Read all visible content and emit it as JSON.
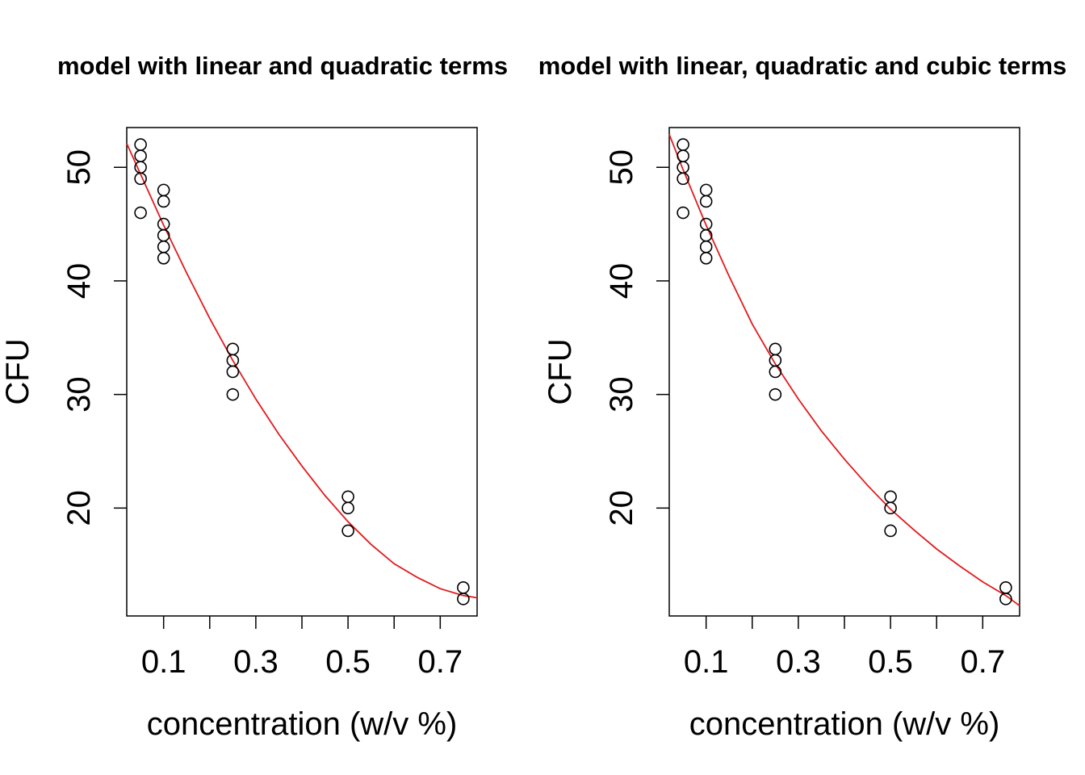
{
  "chart_data": [
    {
      "type": "scatter",
      "title": "model with linear and quadratic terms",
      "xlabel": "concentration (w/v %)",
      "ylabel": "CFU",
      "xlim": [
        0.02,
        0.78
      ],
      "ylim": [
        10.5,
        53.5
      ],
      "xticks": [
        0.1,
        0.2,
        0.3,
        0.4,
        0.5,
        0.6,
        0.7
      ],
      "xtick_labels": [
        "0.1",
        "",
        "0.3",
        "",
        "0.5",
        "",
        "0.7"
      ],
      "yticks": [
        20,
        30,
        40,
        50
      ],
      "ytick_labels": [
        "20",
        "30",
        "40",
        "50"
      ],
      "grid": false,
      "series": [
        {
          "kind": "points",
          "marker": "open-circle",
          "color": "#000000",
          "x": [
            0.05,
            0.05,
            0.05,
            0.05,
            0.05,
            0.1,
            0.1,
            0.1,
            0.1,
            0.1,
            0.1,
            0.25,
            0.25,
            0.25,
            0.25,
            0.5,
            0.5,
            0.5,
            0.75,
            0.75
          ],
          "y": [
            52,
            51,
            50,
            49,
            46,
            48,
            47,
            45,
            44,
            43,
            42,
            34,
            33,
            32,
            30,
            21,
            20,
            18,
            13,
            12
          ]
        },
        {
          "kind": "fitted-line",
          "color": "#e31a1c",
          "x": [
            0.02,
            0.05,
            0.1,
            0.15,
            0.2,
            0.25,
            0.3,
            0.35,
            0.4,
            0.45,
            0.5,
            0.55,
            0.6,
            0.65,
            0.7,
            0.75,
            0.78
          ],
          "y": [
            52.1,
            49.4,
            44.9,
            40.7,
            36.7,
            33.0,
            29.6,
            26.5,
            23.7,
            21.1,
            18.8,
            16.8,
            15.1,
            13.9,
            12.9,
            12.3,
            12.1
          ]
        }
      ]
    },
    {
      "type": "scatter",
      "title": "model with linear, quadratic and cubic terms",
      "xlabel": "concentration (w/v %)",
      "ylabel": "CFU",
      "xlim": [
        0.02,
        0.78
      ],
      "ylim": [
        10.5,
        53.5
      ],
      "xticks": [
        0.1,
        0.2,
        0.3,
        0.4,
        0.5,
        0.6,
        0.7
      ],
      "xtick_labels": [
        "0.1",
        "",
        "0.3",
        "",
        "0.5",
        "",
        "0.7"
      ],
      "yticks": [
        20,
        30,
        40,
        50
      ],
      "ytick_labels": [
        "20",
        "30",
        "40",
        "50"
      ],
      "grid": false,
      "series": [
        {
          "kind": "points",
          "marker": "open-circle",
          "color": "#000000",
          "x": [
            0.05,
            0.05,
            0.05,
            0.05,
            0.05,
            0.1,
            0.1,
            0.1,
            0.1,
            0.1,
            0.1,
            0.25,
            0.25,
            0.25,
            0.25,
            0.5,
            0.5,
            0.5,
            0.75,
            0.75
          ],
          "y": [
            52,
            51,
            50,
            49,
            46,
            48,
            47,
            45,
            44,
            43,
            42,
            34,
            33,
            32,
            30,
            21,
            20,
            18,
            13,
            12
          ]
        },
        {
          "kind": "fitted-line",
          "color": "#e31a1c",
          "x": [
            0.02,
            0.05,
            0.1,
            0.15,
            0.2,
            0.25,
            0.3,
            0.35,
            0.4,
            0.45,
            0.5,
            0.55,
            0.6,
            0.65,
            0.7,
            0.75,
            0.78
          ],
          "y": [
            52.9,
            49.8,
            44.9,
            40.4,
            36.2,
            32.7,
            29.6,
            26.8,
            24.3,
            22.0,
            19.9,
            18.1,
            16.4,
            14.9,
            13.5,
            12.3,
            11.4
          ]
        }
      ]
    }
  ]
}
